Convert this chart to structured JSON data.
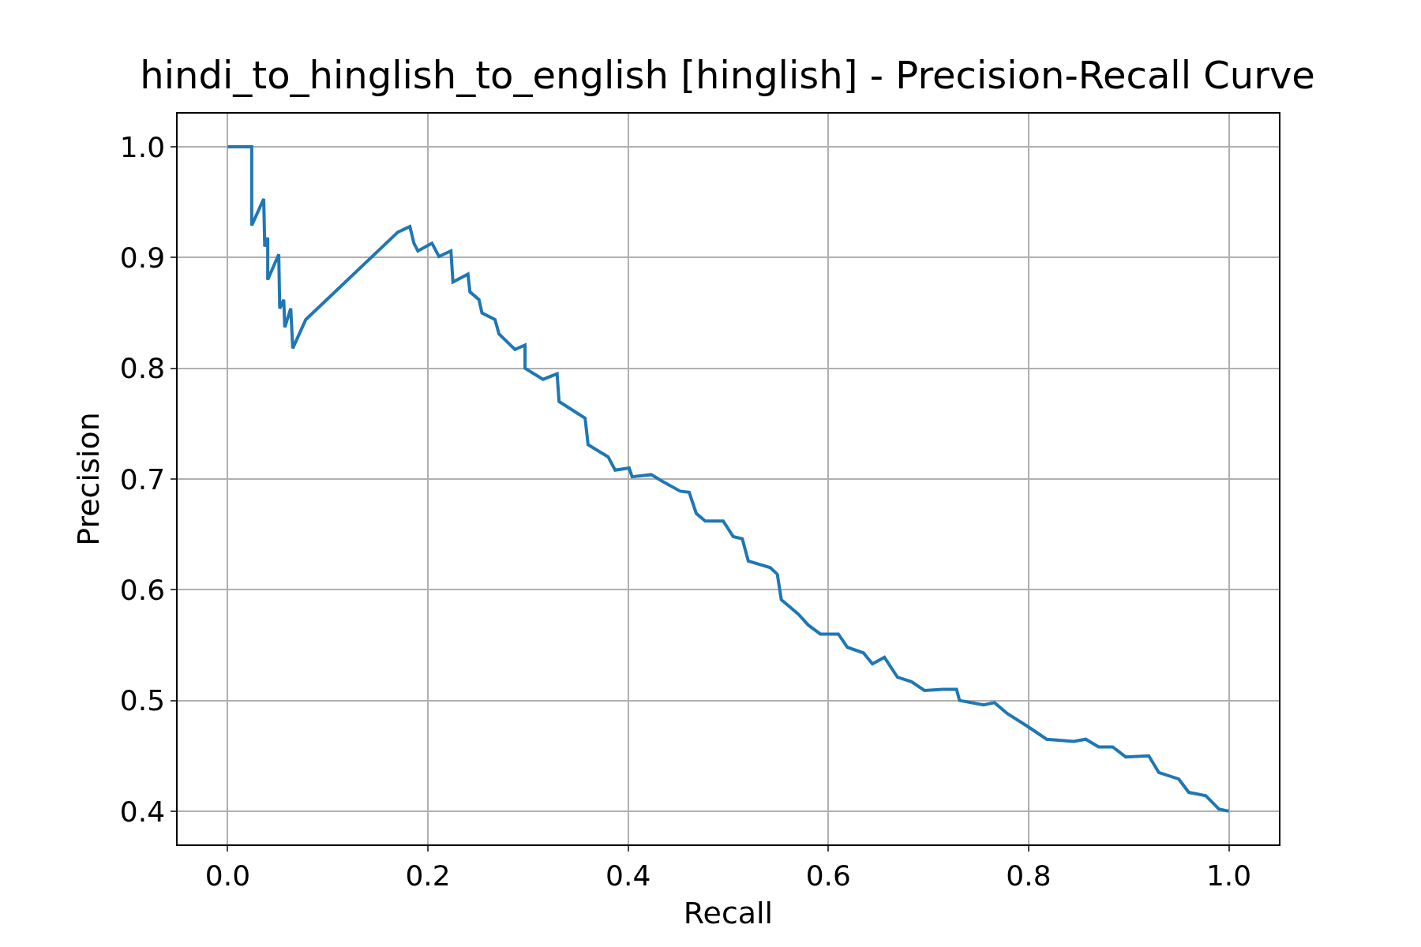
{
  "chart_data": {
    "type": "line",
    "title": "hindi_to_hinglish_to_english [hinglish] - Precision-Recall Curve",
    "xlabel": "Recall",
    "ylabel": "Precision",
    "x": [
      0,
      0.024,
      0.024,
      0.036,
      0.037,
      0.04,
      0.04,
      0.051,
      0.052,
      0.056,
      0.057,
      0.063,
      0.065,
      0.078,
      0.17,
      0.182,
      0.186,
      0.19,
      0.204,
      0.211,
      0.223,
      0.225,
      0.24,
      0.242,
      0.251,
      0.254,
      0.267,
      0.271,
      0.287,
      0.297,
      0.297,
      0.315,
      0.329,
      0.331,
      0.35,
      0.357,
      0.36,
      0.38,
      0.387,
      0.401,
      0.404,
      0.423,
      0.434,
      0.452,
      0.461,
      0.468,
      0.477,
      0.495,
      0.505,
      0.514,
      0.52,
      0.542,
      0.549,
      0.553,
      0.57,
      0.58,
      0.592,
      0.61,
      0.619,
      0.635,
      0.644,
      0.656,
      0.669,
      0.683,
      0.696,
      0.714,
      0.728,
      0.731,
      0.755,
      0.766,
      0.779,
      0.8,
      0.818,
      0.845,
      0.857,
      0.87,
      0.884,
      0.897,
      0.92,
      0.93,
      0.95,
      0.96,
      0.977,
      0.99,
      1.0
    ],
    "series": [
      {
        "color": "#1f77b4",
        "values": [
          1.0,
          1.0,
          0.929,
          0.953,
          0.91,
          0.918,
          0.88,
          0.903,
          0.854,
          0.862,
          0.837,
          0.854,
          0.818,
          0.844,
          0.923,
          0.928,
          0.913,
          0.906,
          0.913,
          0.901,
          0.906,
          0.878,
          0.885,
          0.869,
          0.862,
          0.85,
          0.844,
          0.831,
          0.817,
          0.821,
          0.8,
          0.79,
          0.795,
          0.77,
          0.759,
          0.755,
          0.731,
          0.72,
          0.708,
          0.71,
          0.702,
          0.704,
          0.698,
          0.689,
          0.688,
          0.669,
          0.662,
          0.662,
          0.648,
          0.646,
          0.626,
          0.62,
          0.614,
          0.591,
          0.578,
          0.568,
          0.56,
          0.56,
          0.548,
          0.543,
          0.533,
          0.539,
          0.521,
          0.517,
          0.509,
          0.51,
          0.51,
          0.5,
          0.496,
          0.498,
          0.488,
          0.476,
          0.465,
          0.463,
          0.465,
          0.458,
          0.458,
          0.449,
          0.45,
          0.435,
          0.429,
          0.417,
          0.414,
          0.402,
          0.4
        ]
      }
    ],
    "xlim": [
      -0.05,
      1.05
    ],
    "ylim": [
      0.37,
      1.03
    ],
    "xticks": [
      {
        "value": 0,
        "label": "0.0"
      },
      0.2,
      0.4,
      0.6,
      0.8,
      {
        "value": 1,
        "label": "1.0"
      }
    ],
    "yticks": [
      {
        "value": 0.4,
        "label": "0.4"
      },
      0.5,
      0.6,
      0.7,
      0.8,
      0.9,
      {
        "value": 1,
        "label": "1.0"
      }
    ],
    "grid": true
  }
}
